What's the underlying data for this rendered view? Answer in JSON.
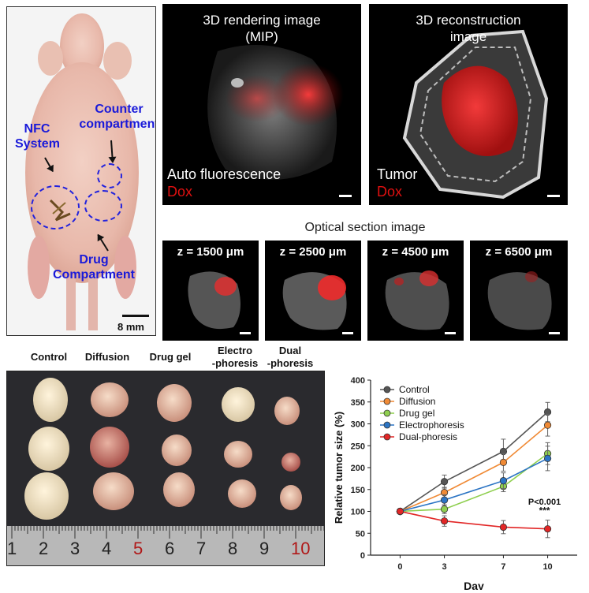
{
  "mouse_panel": {
    "nfc_label": "NFC System",
    "counter_label": "Counter compartment",
    "drug_label": "Drug Compartment",
    "scale_label": "8 mm"
  },
  "render_panel": {
    "title": "3D rendering image (MIP)",
    "title_line1": "3D rendering image",
    "title_line2": "(MIP)",
    "channel1": "Auto fluorescence",
    "channel2": "Dox"
  },
  "recon_panel": {
    "title": "3D reconstruction image",
    "title_line1": "3D reconstruction",
    "title_line2": "image",
    "channel1": "Tumor",
    "channel2": "Dox"
  },
  "optical_sections": {
    "title": "Optical section image",
    "items": [
      {
        "label": "z = 1500 μm"
      },
      {
        "label": "z = 2500 μm"
      },
      {
        "label": "z = 4500 μm"
      },
      {
        "label": "z = 6500 μm"
      }
    ]
  },
  "tumor_photo": {
    "groups": [
      "Control",
      "Diffusion",
      "Drug gel",
      "Electro -phoresis",
      "Dual -phoresis"
    ],
    "group_lines": [
      [
        "Control"
      ],
      [
        "Diffusion"
      ],
      [
        "Drug gel"
      ],
      [
        "Electro",
        "-phoresis"
      ],
      [
        "Dual",
        "-phoresis"
      ]
    ],
    "ruler_ticks": [
      "1",
      "2",
      "3",
      "4",
      "5",
      "6",
      "7",
      "8",
      "9",
      "10"
    ]
  },
  "chart_data": {
    "type": "line",
    "title": "",
    "xlabel": "Day",
    "ylabel": "Relative tumor size (%)",
    "x": [
      0,
      3,
      7,
      10
    ],
    "xticks": [
      "0",
      "3",
      "7",
      "10"
    ],
    "ylim": [
      0,
      400
    ],
    "yticks": [
      0,
      50,
      100,
      150,
      200,
      250,
      300,
      350,
      400
    ],
    "legend_position": "top-left",
    "annotation_p": "P<0.001",
    "annotation_stars": "***",
    "series": [
      {
        "name": "Control",
        "color": "#555555",
        "values": [
          100,
          168,
          237,
          327
        ],
        "err": [
          0,
          15,
          28,
          22
        ]
      },
      {
        "name": "Diffusion",
        "color": "#f08a35",
        "values": [
          100,
          143,
          212,
          297
        ],
        "err": [
          0,
          12,
          20,
          25
        ]
      },
      {
        "name": "Drug gel",
        "color": "#8fcf4f",
        "values": [
          100,
          105,
          157,
          232
        ],
        "err": [
          0,
          10,
          12,
          25
        ]
      },
      {
        "name": "Electrophoresis",
        "color": "#2b74c4",
        "values": [
          100,
          126,
          170,
          221
        ],
        "err": [
          0,
          12,
          18,
          28
        ]
      },
      {
        "name": "Dual-phoresis",
        "color": "#e22626",
        "values": [
          100,
          78,
          64,
          60
        ],
        "err": [
          0,
          12,
          15,
          20
        ]
      }
    ]
  }
}
